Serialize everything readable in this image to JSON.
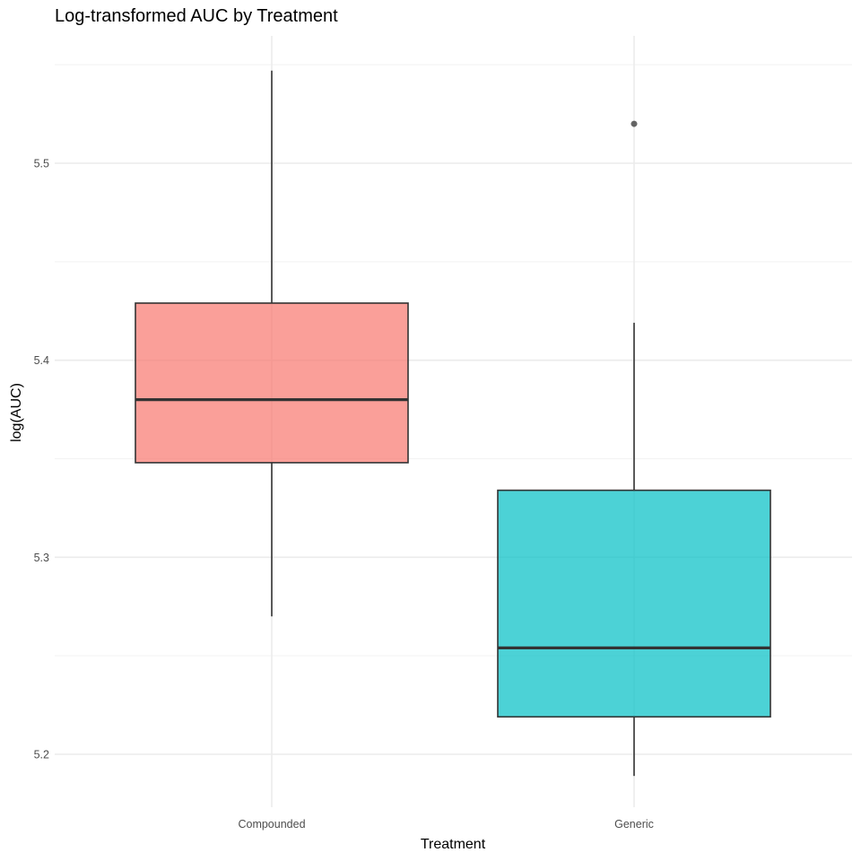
{
  "chart_data": {
    "type": "boxplot",
    "title": "Log-transformed AUC by Treatment",
    "xlabel": "Treatment",
    "ylabel": "log(AUC)",
    "ylim": [
      5.17,
      5.57
    ],
    "yticks": [
      5.2,
      5.3,
      5.4,
      5.5
    ],
    "ytick_labels": [
      "5.2",
      "5.3",
      "5.4",
      "5.5"
    ],
    "grid": true,
    "legend": "none",
    "categories": [
      "Compounded",
      "Generic"
    ],
    "boxes": [
      {
        "category": "Compounded",
        "whisker_low": 5.27,
        "q1": 5.348,
        "median": 5.38,
        "q3": 5.429,
        "whisker_high": 5.547,
        "outliers": [],
        "color": "#F8766D"
      },
      {
        "category": "Generic",
        "whisker_low": 5.189,
        "q1": 5.219,
        "median": 5.254,
        "q3": 5.334,
        "whisker_high": 5.419,
        "outliers": [
          5.52
        ],
        "color": "#00BFC4"
      }
    ]
  }
}
